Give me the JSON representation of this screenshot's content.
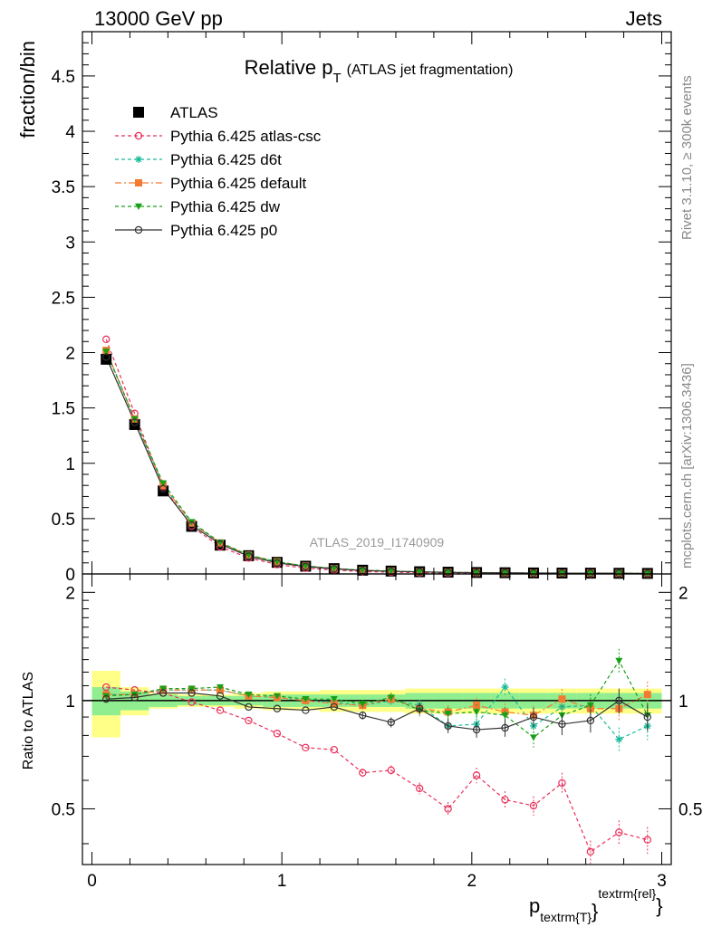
{
  "header": {
    "left": "13000 GeV pp",
    "right": "Jets"
  },
  "side_labels": {
    "rivet": "Rivet 3.1.10, ≥ 300k events",
    "mcplots": "mcplots.cern.ch [arXiv:1306.3436]"
  },
  "chart_data": {
    "type": "line",
    "title_main": "Relative p",
    "title_sub": "T",
    "title_rest": "(ATLAS jet fragmentation)",
    "watermark": "ATLAS_2019_I1740909",
    "xlabel": {
      "main": "p",
      "sub": "textrm{T}",
      "sup": "textrm{rel}",
      "close": "}"
    },
    "ylabel": "fraction/bin",
    "ratio_ylabel": "Ratio to ATLAS",
    "xlim": [
      -0.05,
      3.05
    ],
    "ylim": [
      0,
      4.9
    ],
    "ratio_ylim": [
      0.35,
      2.25
    ],
    "xticks": [
      "0",
      "1",
      "2",
      "3"
    ],
    "yticks": [
      "0",
      "0.5",
      "1",
      "1.5",
      "2",
      "2.5",
      "3",
      "3.5",
      "4",
      "4.5"
    ],
    "ratio_yticks": [
      "0.5",
      "1",
      "2"
    ],
    "x": [
      0.075,
      0.225,
      0.375,
      0.525,
      0.675,
      0.825,
      0.975,
      1.125,
      1.275,
      1.425,
      1.575,
      1.725,
      1.875,
      2.025,
      2.175,
      2.325,
      2.475,
      2.625,
      2.775,
      2.925
    ],
    "series": [
      {
        "name": "ATLAS",
        "color": "#000000",
        "marker": "square",
        "dash": "none",
        "values": [
          1.94,
          1.35,
          0.75,
          0.43,
          0.26,
          0.165,
          0.105,
          0.07,
          0.048,
          0.034,
          0.026,
          0.02,
          0.016,
          0.013,
          0.011,
          0.009,
          0.008,
          0.007,
          0.006,
          0.005
        ],
        "ratio": []
      },
      {
        "name": "Pythia 6.425 atlas-csc",
        "color": "#e8305a",
        "marker": "open-circle",
        "dash": "4,3",
        "values": [
          2.12,
          1.45,
          0.79,
          0.43,
          0.245,
          0.145,
          0.085,
          0.052,
          0.035,
          0.021,
          0.016,
          0.011,
          0.008,
          0.008,
          0.006,
          0.005,
          0.005,
          0.003,
          0.003,
          0.002
        ],
        "ratio": [
          1.09,
          1.07,
          1.05,
          0.99,
          0.94,
          0.88,
          0.81,
          0.74,
          0.73,
          0.63,
          0.64,
          0.57,
          0.5,
          0.62,
          0.53,
          0.51,
          0.59,
          0.38,
          0.43,
          0.41
        ]
      },
      {
        "name": "Pythia 6.425 d6t",
        "color": "#1ab99a",
        "marker": "star",
        "dash": "4,3",
        "values": [
          2.02,
          1.4,
          0.8,
          0.46,
          0.28,
          0.17,
          0.11,
          0.072,
          0.05,
          0.034,
          0.026,
          0.02,
          0.014,
          0.011,
          0.012,
          0.008,
          0.008,
          0.007,
          0.005,
          0.004
        ],
        "ratio": [
          1.04,
          1.04,
          1.07,
          1.07,
          1.07,
          1.03,
          1.02,
          1.0,
          0.99,
          0.97,
          1.0,
          0.97,
          0.85,
          0.86,
          1.09,
          0.85,
          0.96,
          0.97,
          0.78,
          0.85
        ]
      },
      {
        "name": "Pythia 6.425 default",
        "color": "#f47a32",
        "marker": "square",
        "dash": "7,3,2,3",
        "values": [
          2.02,
          1.4,
          0.8,
          0.46,
          0.28,
          0.17,
          0.11,
          0.071,
          0.049,
          0.033,
          0.026,
          0.019,
          0.015,
          0.013,
          0.01,
          0.008,
          0.008,
          0.007,
          0.006,
          0.005
        ],
        "ratio": [
          1.04,
          1.04,
          1.07,
          1.07,
          1.07,
          1.03,
          1.02,
          1.0,
          0.98,
          0.97,
          1.01,
          0.95,
          0.93,
          0.97,
          0.93,
          0.91,
          1.01,
          0.95,
          0.95,
          1.04
        ]
      },
      {
        "name": "Pythia 6.425 dw",
        "color": "#18a018",
        "marker": "triangle-down",
        "dash": "4,3",
        "values": [
          2.01,
          1.4,
          0.82,
          0.47,
          0.285,
          0.172,
          0.11,
          0.072,
          0.05,
          0.034,
          0.027,
          0.019,
          0.015,
          0.012,
          0.01,
          0.007,
          0.008,
          0.007,
          0.008,
          0.004
        ],
        "ratio": [
          1.03,
          1.04,
          1.08,
          1.08,
          1.09,
          1.04,
          1.03,
          1.01,
          1.01,
          0.98,
          1.02,
          0.94,
          0.92,
          0.93,
          0.91,
          0.79,
          0.91,
          0.97,
          1.29,
          0.91
        ]
      },
      {
        "name": "Pythia 6.425 p0",
        "color": "#333333",
        "marker": "open-circle",
        "dash": "none",
        "values": [
          1.96,
          1.37,
          0.77,
          0.44,
          0.27,
          0.16,
          0.1,
          0.066,
          0.046,
          0.031,
          0.023,
          0.019,
          0.014,
          0.011,
          0.009,
          0.008,
          0.007,
          0.006,
          0.006,
          0.0045
        ],
        "ratio": [
          1.01,
          1.02,
          1.05,
          1.05,
          1.03,
          0.96,
          0.95,
          0.94,
          0.96,
          0.91,
          0.87,
          0.95,
          0.85,
          0.83,
          0.84,
          0.9,
          0.86,
          0.88,
          1.0,
          0.9
        ]
      }
    ],
    "ratio_band_inner": [
      0.09,
      0.06,
      0.04,
      0.03,
      0.03,
      0.03,
      0.04,
      0.04,
      0.04,
      0.04,
      0.04,
      0.05,
      0.05,
      0.05,
      0.05,
      0.05,
      0.05,
      0.05,
      0.05,
      0.05
    ],
    "ratio_band_outer": [
      0.21,
      0.09,
      0.05,
      0.04,
      0.04,
      0.05,
      0.06,
      0.06,
      0.07,
      0.07,
      0.07,
      0.08,
      0.08,
      0.08,
      0.08,
      0.08,
      0.08,
      0.08,
      0.08,
      0.08
    ],
    "band_colors": {
      "inner": "#90ee90",
      "outer": "#ffff88"
    },
    "grid": false,
    "legend_position": "top-left"
  }
}
